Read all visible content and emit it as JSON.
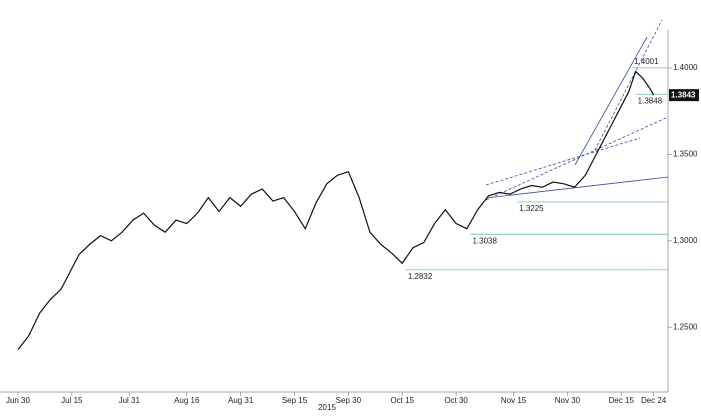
{
  "chart_data": {
    "type": "line",
    "x": [
      "2015-06-30",
      "2015-07-03",
      "2015-07-06",
      "2015-07-09",
      "2015-07-12",
      "2015-07-14",
      "2015-07-17",
      "2015-07-20",
      "2015-07-23",
      "2015-07-26",
      "2015-07-29",
      "2015-08-01",
      "2015-08-04",
      "2015-08-07",
      "2015-08-10",
      "2015-08-13",
      "2015-08-16",
      "2015-08-19",
      "2015-08-22",
      "2015-08-25",
      "2015-08-28",
      "2015-08-31",
      "2015-09-03",
      "2015-09-06",
      "2015-09-09",
      "2015-09-12",
      "2015-09-15",
      "2015-09-18",
      "2015-09-21",
      "2015-09-24",
      "2015-09-27",
      "2015-09-30",
      "2015-10-03",
      "2015-10-06",
      "2015-10-09",
      "2015-10-12",
      "2015-10-15",
      "2015-10-18",
      "2015-10-21",
      "2015-10-24",
      "2015-10-27",
      "2015-10-30",
      "2015-11-02",
      "2015-11-05",
      "2015-11-08",
      "2015-11-11",
      "2015-11-14",
      "2015-11-17",
      "2015-11-20",
      "2015-11-23",
      "2015-11-26",
      "2015-11-29",
      "2015-12-02",
      "2015-12-05",
      "2015-12-08",
      "2015-12-11",
      "2015-12-14",
      "2015-12-17",
      "2015-12-19",
      "2015-12-21",
      "2015-12-23",
      "2015-12-24"
    ],
    "series": [
      {
        "color": "#111111",
        "values": [
          1.237,
          1.245,
          1.258,
          1.266,
          1.272,
          1.28,
          1.292,
          1.298,
          1.303,
          1.3,
          1.305,
          1.312,
          1.316,
          1.309,
          1.305,
          1.312,
          1.31,
          1.316,
          1.325,
          1.317,
          1.325,
          1.32,
          1.327,
          1.33,
          1.323,
          1.325,
          1.317,
          1.307,
          1.322,
          1.333,
          1.338,
          1.34,
          1.325,
          1.305,
          1.298,
          1.293,
          1.287,
          1.296,
          1.299,
          1.31,
          1.318,
          1.31,
          1.307,
          1.318,
          1.326,
          1.328,
          1.327,
          1.33,
          1.332,
          1.331,
          1.334,
          1.333,
          1.331,
          1.338,
          1.35,
          1.362,
          1.374,
          1.386,
          1.398,
          1.394,
          1.388,
          1.3843
        ]
      }
    ],
    "levels": [
      {
        "value": 1.3225,
        "x": "2015-11-16",
        "color": "#7ccaa8"
      },
      {
        "value": 1.3038,
        "x": "2015-11-03",
        "color": "#7ccaa8"
      },
      {
        "value": 1.2832,
        "x": "2015-10-16",
        "color": "#7ccaa8"
      },
      {
        "value": 1.3848,
        "x": "2015-12-19",
        "color": "#7ccaa8"
      },
      {
        "value": 1.4001,
        "x": "2015-12-18",
        "color": "#7ccaa8"
      }
    ],
    "xlim": [
      "2015-06-25",
      "2015-12-28"
    ],
    "xticks": [
      {
        "value": "2015-06-30",
        "label": "Jun 30"
      },
      {
        "value": "2015-07-15",
        "label": "Jul 15"
      },
      {
        "value": "2015-07-31",
        "label": "Jul 31"
      },
      {
        "value": "2015-08-16",
        "label": "Aug 16"
      },
      {
        "value": "2015-08-31",
        "label": "Aug 31"
      },
      {
        "value": "2015-09-15",
        "label": "Sep 15"
      },
      {
        "value": "2015-09-30",
        "label": "Sep 30"
      },
      {
        "value": "2015-10-15",
        "label": "Oct 15"
      },
      {
        "value": "2015-10-30",
        "label": "Oct 30"
      },
      {
        "value": "2015-11-15",
        "label": "Nov 15"
      },
      {
        "value": "2015-11-30",
        "label": "Nov 30"
      },
      {
        "value": "2015-12-15",
        "label": "Dec 15"
      },
      {
        "value": "2015-12-24",
        "label": "Dec 24"
      }
    ],
    "xlabel": "2015",
    "ylim": [
      1.2125,
      1.422
    ],
    "yticks": [
      {
        "value": 1.25,
        "label": "1.2500"
      },
      {
        "value": 1.3,
        "label": "1.3000"
      },
      {
        "value": 1.35,
        "label": "1.3500"
      },
      {
        "value": 1.4,
        "label": "1.4000"
      }
    ]
  }
}
